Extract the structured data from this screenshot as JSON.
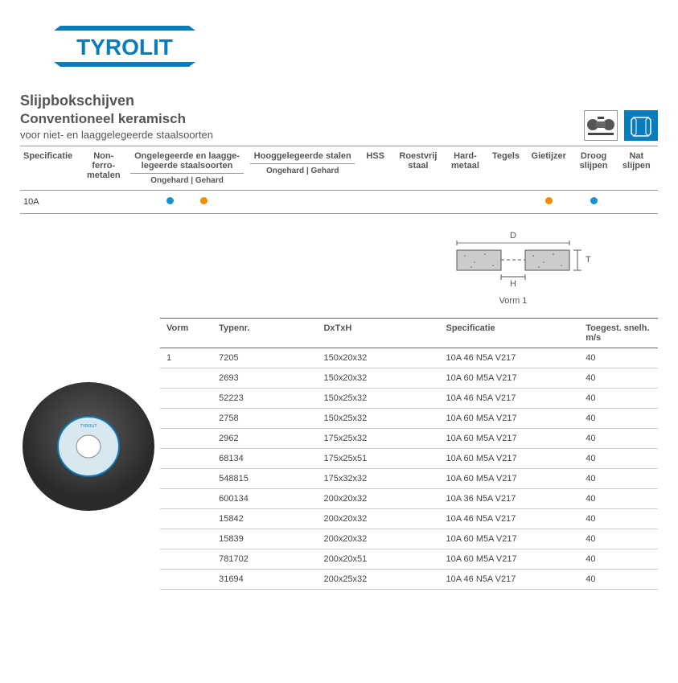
{
  "logo": {
    "text": "TYROLIT",
    "color": "#0a7bbb"
  },
  "title1": "Slijpbokschijven",
  "title2": "Conventioneel keramisch",
  "subtitle": "voor niet- en laaggelegeerde staalsoorten",
  "colors": {
    "blue_dot": "#1693d0",
    "orange_dot": "#f28c00",
    "brand": "#0a7bbb",
    "border": "#999999",
    "text": "#555555",
    "row_border": "#cccccc"
  },
  "suitability": {
    "headers": [
      "Specificatie",
      "Non-ferro-metalen",
      "Ongelegeerde en laagge-legeerde staalsoorten",
      "Hooggelegeerde stalen",
      "HSS",
      "Roestvrij staal",
      "Hard-metaal",
      "Tegels",
      "Gietijzer",
      "Droog slijpen",
      "Nat slijpen"
    ],
    "sublabel": "Ongehard | Gehard",
    "row_label": "10A",
    "dots": [
      "",
      "",
      "blue|orange",
      "",
      "",
      "",
      "",
      "",
      "orange",
      "blue",
      ""
    ]
  },
  "diagram": {
    "label": "Vorm 1",
    "D": "D",
    "H": "H",
    "T": "T"
  },
  "data_table": {
    "headers": [
      "Vorm",
      "Typenr.",
      "DxTxH",
      "Specificatie",
      "Toegest. snelh. m/s"
    ],
    "vorm_value": "1",
    "rows": [
      [
        "7205",
        "150x20x32",
        "10A 46 N5A V217",
        "40"
      ],
      [
        "2693",
        "150x20x32",
        "10A 60 M5A V217",
        "40"
      ],
      [
        "52223",
        "150x25x32",
        "10A 46 N5A V217",
        "40"
      ],
      [
        "2758",
        "150x25x32",
        "10A 60 M5A V217",
        "40"
      ],
      [
        "2962",
        "175x25x32",
        "10A 60 M5A V217",
        "40"
      ],
      [
        "68134",
        "175x25x51",
        "10A 60 M5A V217",
        "40"
      ],
      [
        "548815",
        "175x32x32",
        "10A 60 M5A V217",
        "40"
      ],
      [
        "600134",
        "200x20x32",
        "10A 36 N5A V217",
        "40"
      ],
      [
        "15842",
        "200x20x32",
        "10A 46 N5A V217",
        "40"
      ],
      [
        "15839",
        "200x20x32",
        "10A 60 M5A V217",
        "40"
      ],
      [
        "781702",
        "200x20x51",
        "10A 60 M5A V217",
        "40"
      ],
      [
        "31694",
        "200x25x32",
        "10A 46 N5A V217",
        "40"
      ]
    ]
  }
}
